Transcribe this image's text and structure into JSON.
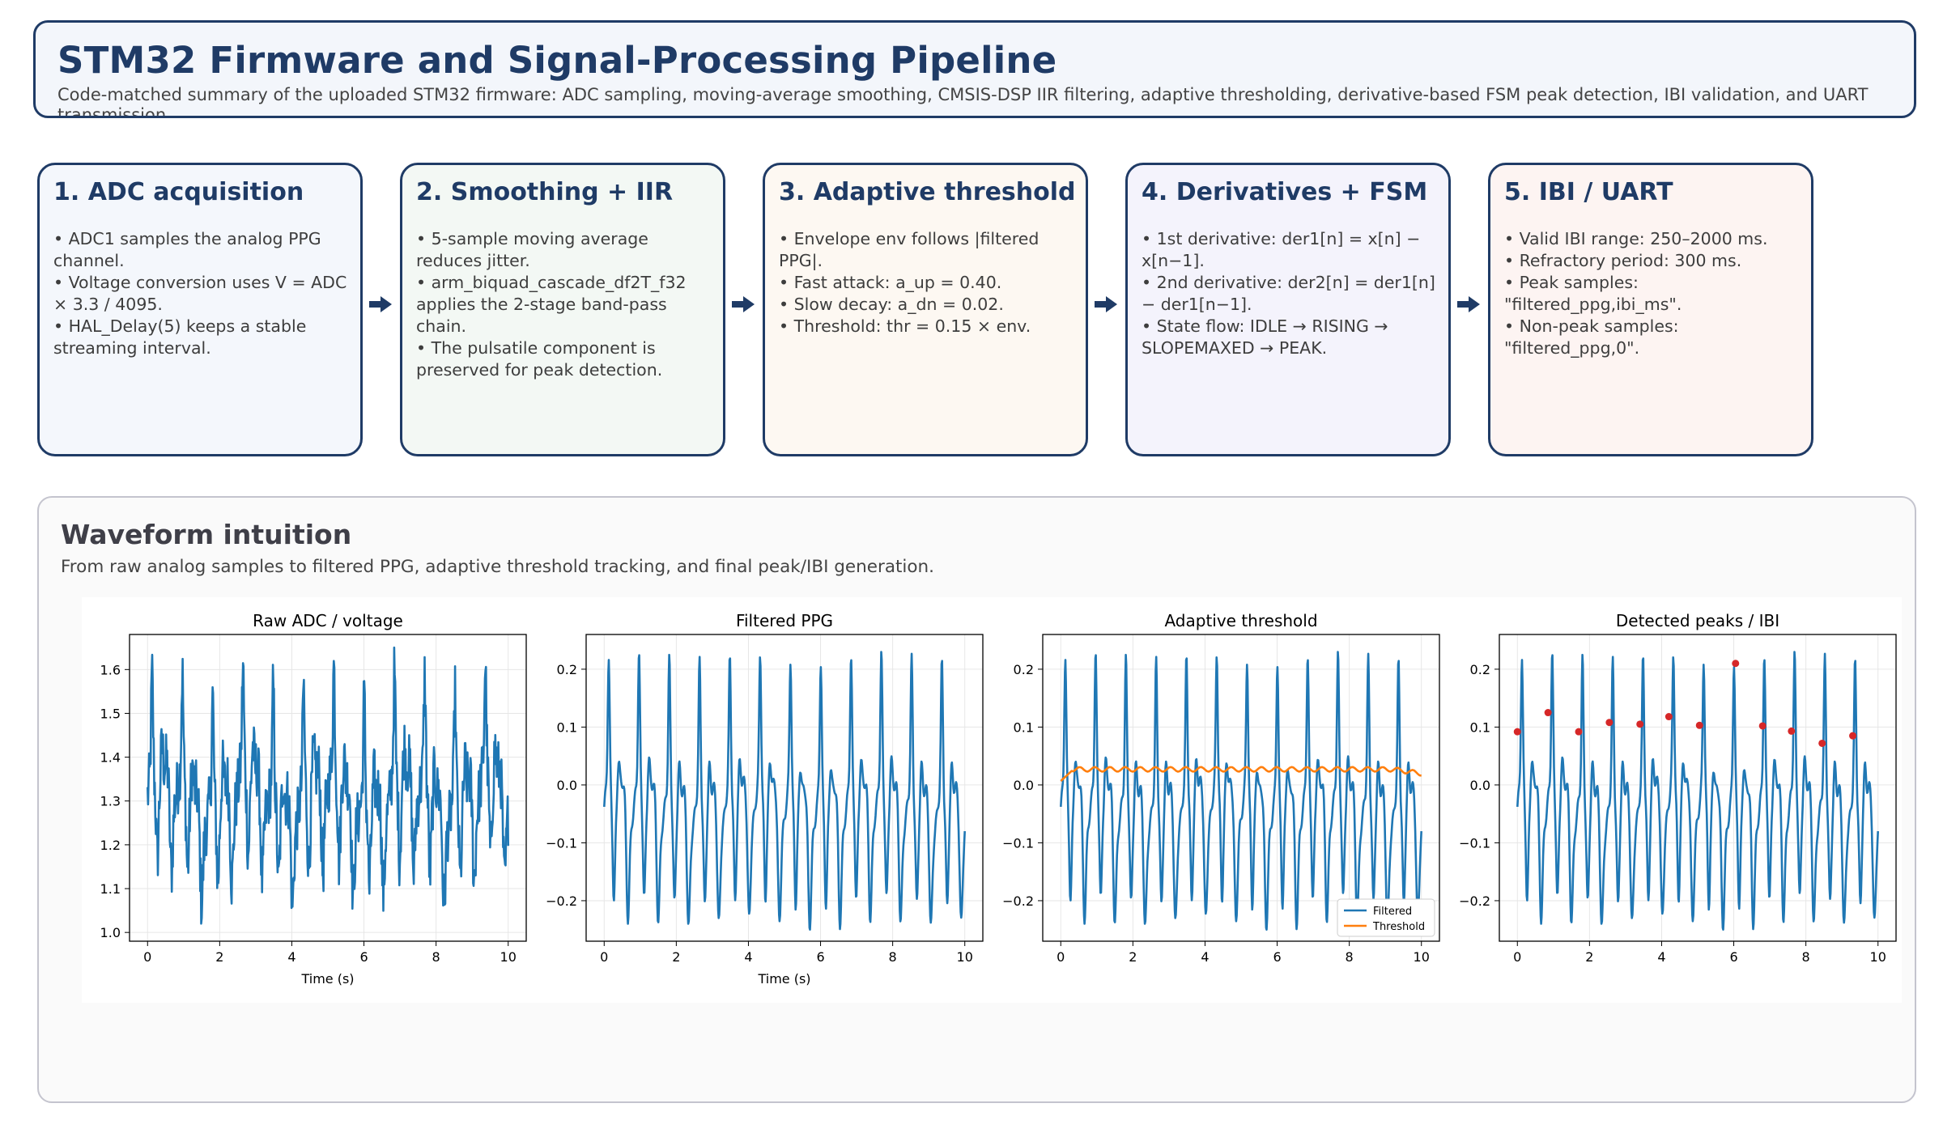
{
  "header": {
    "title": "STM32 Firmware and Signal-Processing Pipeline",
    "subtitle": "Code-matched summary of the uploaded STM32 firmware: ADC sampling, moving-average smoothing, CMSIS-DSP IIR filtering, adaptive thresholding, derivative-based FSM peak detection, IBI validation, and UART transmission."
  },
  "stages": [
    {
      "title": "1. ADC acquisition",
      "bg": "#f4f7fc",
      "bullets": [
        "• ADC1 samples the analog PPG channel.",
        "• Voltage conversion uses V = ADC × 3.3 / 4095.",
        "• HAL_Delay(5) keeps a stable streaming interval."
      ]
    },
    {
      "title": "2. Smoothing + IIR",
      "bg": "#f3f8f4",
      "bullets": [
        "• 5-sample moving average reduces jitter.",
        "• arm_biquad_cascade_df2T_f32 applies the 2-stage band-pass chain.",
        "• The pulsatile component is preserved for peak detection."
      ]
    },
    {
      "title": "3. Adaptive threshold",
      "bg": "#fdf8f2",
      "bullets": [
        "• Envelope env follows |filtered PPG|.",
        "• Fast attack: a_up = 0.40.",
        "• Slow decay: a_dn = 0.02.",
        "• Threshold: thr = 0.15 × env."
      ]
    },
    {
      "title": "4. Derivatives + FSM",
      "bg": "#f4f3fc",
      "bullets": [
        "• 1st derivative: der1[n] = x[n] − x[n−1].",
        "• 2nd derivative: der2[n] = der1[n] − der1[n−1].",
        "• State flow: IDLE → RISING → SLOPEMAXED → PEAK."
      ]
    },
    {
      "title": "5. IBI / UART",
      "bg": "#fdf4f2",
      "bullets": [
        "• Valid IBI range: 250–2000 ms.",
        "• Refractory period: 300 ms.",
        "• Peak samples: \"filtered_ppg,ibi_ms\".",
        "• Non-peak samples: \"filtered_ppg,0\"."
      ]
    }
  ],
  "waveform": {
    "title": "Waveform intuition",
    "subtitle": "From raw analog samples to filtered PPG, adaptive threshold tracking, and final peak/IBI generation."
  },
  "colors": {
    "primary": "#1f3b66",
    "line": "#1f77b4",
    "threshold": "#ff7f0e",
    "peak": "#d62728"
  },
  "chart_data": [
    {
      "type": "line",
      "title": "Raw ADC / voltage",
      "xlabel": "Time (s)",
      "ylabel": "",
      "xlim": [
        -0.5,
        10.5
      ],
      "ylim": [
        0.98,
        1.68
      ],
      "xticks": [
        "0",
        "2",
        "4",
        "6",
        "8",
        "10"
      ],
      "yticks": [
        "1.0",
        "1.1",
        "1.2",
        "1.3",
        "1.4",
        "1.5",
        "1.6"
      ],
      "series": [
        {
          "kind": "raw",
          "x_range": [
            0,
            10
          ],
          "samples": 700,
          "offset": 1.35,
          "beat_period_s": 0.84,
          "amplitude": 0.14,
          "noise": 0.06,
          "min": 1.02,
          "max": 1.65
        }
      ]
    },
    {
      "type": "line",
      "title": "Filtered PPG",
      "xlabel": "Time (s)",
      "ylabel": "",
      "xlim": [
        -0.5,
        10.5
      ],
      "ylim": [
        -0.27,
        0.26
      ],
      "xticks": [
        "0",
        "2",
        "4",
        "6",
        "8",
        "10"
      ],
      "yticks": [
        "0.2",
        "0.1",
        "0.0",
        "−0.1",
        "−0.2"
      ],
      "series": [
        {
          "kind": "filtered",
          "x_range": [
            0,
            10
          ],
          "samples": 700,
          "beat_period_s": 0.84,
          "min": -0.25,
          "max": 0.23
        }
      ]
    },
    {
      "type": "line",
      "title": "Adaptive threshold",
      "xlabel": "",
      "ylabel": "",
      "xlim": [
        -0.5,
        10.5
      ],
      "ylim": [
        -0.27,
        0.26
      ],
      "xticks": [
        "0",
        "2",
        "4",
        "6",
        "8",
        "10"
      ],
      "yticks": [
        "0.2",
        "0.1",
        "0.0",
        "−0.1",
        "−0.2"
      ],
      "legend": {
        "position": "lower-right",
        "entries": [
          "Filtered",
          "Threshold"
        ]
      },
      "series": [
        {
          "kind": "filtered",
          "x_range": [
            0,
            10
          ],
          "samples": 700,
          "beat_period_s": 0.84,
          "min": -0.25,
          "max": 0.23
        },
        {
          "kind": "threshold",
          "x_range": [
            0,
            10
          ],
          "level": 0.027,
          "ripple": 0.004
        }
      ]
    },
    {
      "type": "line",
      "title": "Detected peaks / IBI",
      "xlabel": "",
      "ylabel": "",
      "xlim": [
        -0.5,
        10.5
      ],
      "ylim": [
        -0.27,
        0.26
      ],
      "xticks": [
        "0",
        "2",
        "4",
        "6",
        "8",
        "10"
      ],
      "yticks": [
        "0.2",
        "0.1",
        "0.0",
        "−0.1",
        "−0.2"
      ],
      "series": [
        {
          "kind": "filtered",
          "x_range": [
            0,
            10
          ],
          "samples": 700,
          "beat_period_s": 0.84,
          "min": -0.25,
          "max": 0.23
        }
      ],
      "peaks": {
        "x": [
          0.0,
          0.85,
          1.7,
          2.55,
          3.4,
          4.2,
          5.05,
          6.05,
          6.8,
          7.6,
          8.45,
          9.3
        ],
        "y": [
          0.092,
          0.125,
          0.092,
          0.108,
          0.105,
          0.118,
          0.103,
          0.21,
          0.102,
          0.093,
          0.072,
          0.085
        ]
      }
    }
  ]
}
